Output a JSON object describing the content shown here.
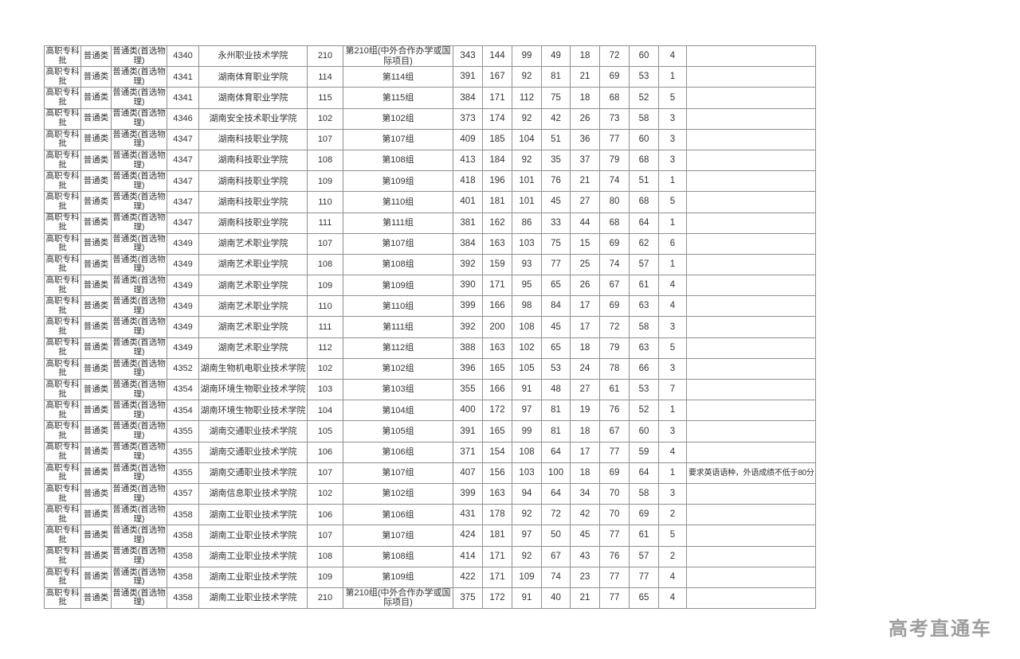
{
  "page": {
    "watermark": "高考直通车"
  },
  "table": {
    "common": {
      "batch": "高职专科批",
      "category": "普通类",
      "subject": "普通类(首选物理)"
    },
    "rows": [
      {
        "code": "4340",
        "school": "永州职业技术学院",
        "group": "210",
        "group_name": "第210组(中外合作办学或国际项目)",
        "values": [
          343,
          144,
          99,
          49,
          18,
          72,
          60,
          4
        ],
        "remark": ""
      },
      {
        "code": "4341",
        "school": "湖南体育职业学院",
        "group": "114",
        "group_name": "第114组",
        "values": [
          391,
          167,
          92,
          81,
          21,
          69,
          53,
          1
        ],
        "remark": ""
      },
      {
        "code": "4341",
        "school": "湖南体育职业学院",
        "group": "115",
        "group_name": "第115组",
        "values": [
          384,
          171,
          112,
          75,
          18,
          68,
          52,
          5
        ],
        "remark": ""
      },
      {
        "code": "4346",
        "school": "湖南安全技术职业学院",
        "group": "102",
        "group_name": "第102组",
        "values": [
          373,
          174,
          92,
          42,
          26,
          73,
          58,
          3
        ],
        "remark": ""
      },
      {
        "code": "4347",
        "school": "湖南科技职业学院",
        "group": "107",
        "group_name": "第107组",
        "values": [
          409,
          185,
          104,
          51,
          36,
          77,
          60,
          3
        ],
        "remark": ""
      },
      {
        "code": "4347",
        "school": "湖南科技职业学院",
        "group": "108",
        "group_name": "第108组",
        "values": [
          413,
          184,
          92,
          35,
          37,
          79,
          68,
          3
        ],
        "remark": ""
      },
      {
        "code": "4347",
        "school": "湖南科技职业学院",
        "group": "109",
        "group_name": "第109组",
        "values": [
          418,
          196,
          101,
          76,
          21,
          74,
          51,
          1
        ],
        "remark": ""
      },
      {
        "code": "4347",
        "school": "湖南科技职业学院",
        "group": "110",
        "group_name": "第110组",
        "values": [
          401,
          181,
          101,
          45,
          27,
          80,
          68,
          5
        ],
        "remark": ""
      },
      {
        "code": "4347",
        "school": "湖南科技职业学院",
        "group": "111",
        "group_name": "第111组",
        "values": [
          381,
          162,
          86,
          33,
          44,
          68,
          64,
          1
        ],
        "remark": ""
      },
      {
        "code": "4349",
        "school": "湖南艺术职业学院",
        "group": "107",
        "group_name": "第107组",
        "values": [
          384,
          163,
          103,
          75,
          15,
          69,
          62,
          6
        ],
        "remark": ""
      },
      {
        "code": "4349",
        "school": "湖南艺术职业学院",
        "group": "108",
        "group_name": "第108组",
        "values": [
          392,
          159,
          93,
          77,
          25,
          74,
          57,
          1
        ],
        "remark": ""
      },
      {
        "code": "4349",
        "school": "湖南艺术职业学院",
        "group": "109",
        "group_name": "第109组",
        "values": [
          390,
          171,
          95,
          65,
          26,
          67,
          61,
          4
        ],
        "remark": ""
      },
      {
        "code": "4349",
        "school": "湖南艺术职业学院",
        "group": "110",
        "group_name": "第110组",
        "values": [
          399,
          166,
          98,
          84,
          17,
          69,
          63,
          4
        ],
        "remark": ""
      },
      {
        "code": "4349",
        "school": "湖南艺术职业学院",
        "group": "111",
        "group_name": "第111组",
        "values": [
          392,
          200,
          108,
          45,
          17,
          72,
          58,
          3
        ],
        "remark": ""
      },
      {
        "code": "4349",
        "school": "湖南艺术职业学院",
        "group": "112",
        "group_name": "第112组",
        "values": [
          388,
          163,
          102,
          65,
          18,
          79,
          63,
          5
        ],
        "remark": ""
      },
      {
        "code": "4352",
        "school": "湖南生物机电职业技术学院",
        "group": "102",
        "group_name": "第102组",
        "values": [
          396,
          165,
          105,
          53,
          24,
          78,
          66,
          3
        ],
        "remark": ""
      },
      {
        "code": "4354",
        "school": "湖南环境生物职业技术学院",
        "group": "103",
        "group_name": "第103组",
        "values": [
          355,
          166,
          91,
          48,
          27,
          61,
          53,
          7
        ],
        "remark": ""
      },
      {
        "code": "4354",
        "school": "湖南环境生物职业技术学院",
        "group": "104",
        "group_name": "第104组",
        "values": [
          400,
          172,
          97,
          81,
          19,
          76,
          52,
          1
        ],
        "remark": ""
      },
      {
        "code": "4355",
        "school": "湖南交通职业技术学院",
        "group": "105",
        "group_name": "第105组",
        "values": [
          391,
          165,
          99,
          81,
          18,
          67,
          60,
          3
        ],
        "remark": ""
      },
      {
        "code": "4355",
        "school": "湖南交通职业技术学院",
        "group": "106",
        "group_name": "第106组",
        "values": [
          371,
          154,
          108,
          64,
          17,
          77,
          59,
          4
        ],
        "remark": ""
      },
      {
        "code": "4355",
        "school": "湖南交通职业技术学院",
        "group": "107",
        "group_name": "第107组",
        "values": [
          407,
          156,
          103,
          100,
          18,
          69,
          64,
          1
        ],
        "remark": "要求英语语种，外语成绩不低于80分"
      },
      {
        "code": "4357",
        "school": "湖南信息职业技术学院",
        "group": "102",
        "group_name": "第102组",
        "values": [
          399,
          163,
          94,
          64,
          34,
          70,
          58,
          3
        ],
        "remark": ""
      },
      {
        "code": "4358",
        "school": "湖南工业职业技术学院",
        "group": "106",
        "group_name": "第106组",
        "values": [
          431,
          178,
          92,
          72,
          42,
          70,
          69,
          2
        ],
        "remark": ""
      },
      {
        "code": "4358",
        "school": "湖南工业职业技术学院",
        "group": "107",
        "group_name": "第107组",
        "values": [
          424,
          181,
          97,
          50,
          45,
          77,
          61,
          5
        ],
        "remark": ""
      },
      {
        "code": "4358",
        "school": "湖南工业职业技术学院",
        "group": "108",
        "group_name": "第108组",
        "values": [
          414,
          171,
          92,
          67,
          43,
          76,
          57,
          2
        ],
        "remark": ""
      },
      {
        "code": "4358",
        "school": "湖南工业职业技术学院",
        "group": "109",
        "group_name": "第109组",
        "values": [
          422,
          171,
          109,
          74,
          23,
          77,
          77,
          4
        ],
        "remark": ""
      },
      {
        "code": "4358",
        "school": "湖南工业职业技术学院",
        "group": "210",
        "group_name": "第210组(中外合作办学或国际项目)",
        "values": [
          375,
          172,
          91,
          40,
          21,
          77,
          65,
          4
        ],
        "remark": ""
      }
    ]
  }
}
